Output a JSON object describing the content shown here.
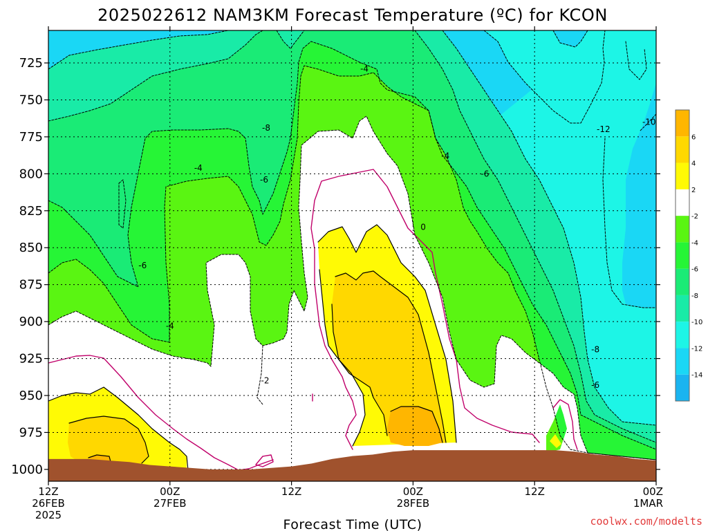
{
  "chart_data": {
    "type": "contour",
    "title": "2025022612 NAM3KM Forecast Temperature (ºC) for KCON",
    "xlabel": "Forecast Time (UTC)",
    "ylabel": "",
    "x_ticks": [
      {
        "hour": 0,
        "line1": "12Z",
        "line2": "26FEB",
        "line3": "2025"
      },
      {
        "hour": 12,
        "line1": "00Z",
        "line2": "27FEB",
        "line3": ""
      },
      {
        "hour": 24,
        "line1": "12Z",
        "line2": "",
        "line3": ""
      },
      {
        "hour": 36,
        "line1": "00Z",
        "line2": "28FEB",
        "line3": ""
      },
      {
        "hour": 48,
        "line1": "12Z",
        "line2": "",
        "line3": ""
      },
      {
        "hour": 60,
        "line1": "00Z",
        "line2": "1MAR",
        "line3": ""
      }
    ],
    "xlim": [
      0,
      60
    ],
    "y_ticks": [
      725,
      750,
      775,
      800,
      825,
      850,
      875,
      900,
      925,
      950,
      975,
      1000
    ],
    "ylim": [
      1008,
      703
    ],
    "y_scale": "pressure (hPa), inverted",
    "grid": true,
    "colorbar": {
      "levels": [
        -16,
        -14,
        -12,
        -10,
        -8,
        -6,
        -4,
        -2,
        2,
        4,
        6,
        8
      ],
      "colors": [
        "#1ab4f0",
        "#1ad7f5",
        "#1df5e6",
        "#19eba7",
        "#1aeb76",
        "#26f536",
        "#5af512",
        "#ffffff",
        "#fffa05",
        "#ffd800",
        "#ffb600"
      ],
      "tick_labels": [
        "-14",
        "-12",
        "-10",
        "-8",
        "-6",
        "-4",
        "-2",
        "2",
        "4",
        "6"
      ]
    },
    "contour_labels": [
      {
        "text": "-4",
        "hour": 31.2,
        "p": 729
      },
      {
        "text": "-8",
        "hour": 21.5,
        "p": 769
      },
      {
        "text": "-4",
        "hour": 14.8,
        "p": 796
      },
      {
        "text": "-6",
        "hour": 21.3,
        "p": 804
      },
      {
        "text": "-4",
        "hour": 39.2,
        "p": 788
      },
      {
        "text": "-6",
        "hour": 43.1,
        "p": 800
      },
      {
        "text": "-12",
        "hour": 54.8,
        "p": 770
      },
      {
        "text": "-10",
        "hour": 59.3,
        "p": 765
      },
      {
        "text": "0",
        "hour": 37.0,
        "p": 836
      },
      {
        "text": "-6",
        "hour": 9.3,
        "p": 862
      },
      {
        "text": "-4",
        "hour": 12.0,
        "p": 903
      },
      {
        "text": "-8",
        "hour": 54.0,
        "p": 919
      },
      {
        "text": "-6",
        "hour": 54.0,
        "p": 943
      },
      {
        "text": "-2",
        "hour": 21.4,
        "p": 940
      }
    ],
    "terrain": {
      "color": "#a0522d",
      "surface_pressure": [
        [
          0,
          993
        ],
        [
          2,
          993
        ],
        [
          4,
          993
        ],
        [
          6,
          994
        ],
        [
          8,
          995
        ],
        [
          10,
          997
        ],
        [
          12,
          998
        ],
        [
          14,
          999
        ],
        [
          16,
          1000
        ],
        [
          18,
          1000
        ],
        [
          20,
          1000
        ],
        [
          22,
          999
        ],
        [
          24,
          998
        ],
        [
          26,
          996
        ],
        [
          28,
          993
        ],
        [
          30,
          991
        ],
        [
          32,
          990
        ],
        [
          34,
          988
        ],
        [
          36,
          987
        ],
        [
          38,
          987
        ],
        [
          40,
          987
        ],
        [
          42,
          987
        ],
        [
          44,
          987
        ],
        [
          46,
          987
        ],
        [
          48,
          987
        ],
        [
          50,
          987
        ],
        [
          52,
          988
        ],
        [
          54,
          990
        ],
        [
          56,
          991
        ],
        [
          58,
          993
        ],
        [
          60,
          994
        ]
      ]
    }
  },
  "credit": "coolwx.com/modelts"
}
